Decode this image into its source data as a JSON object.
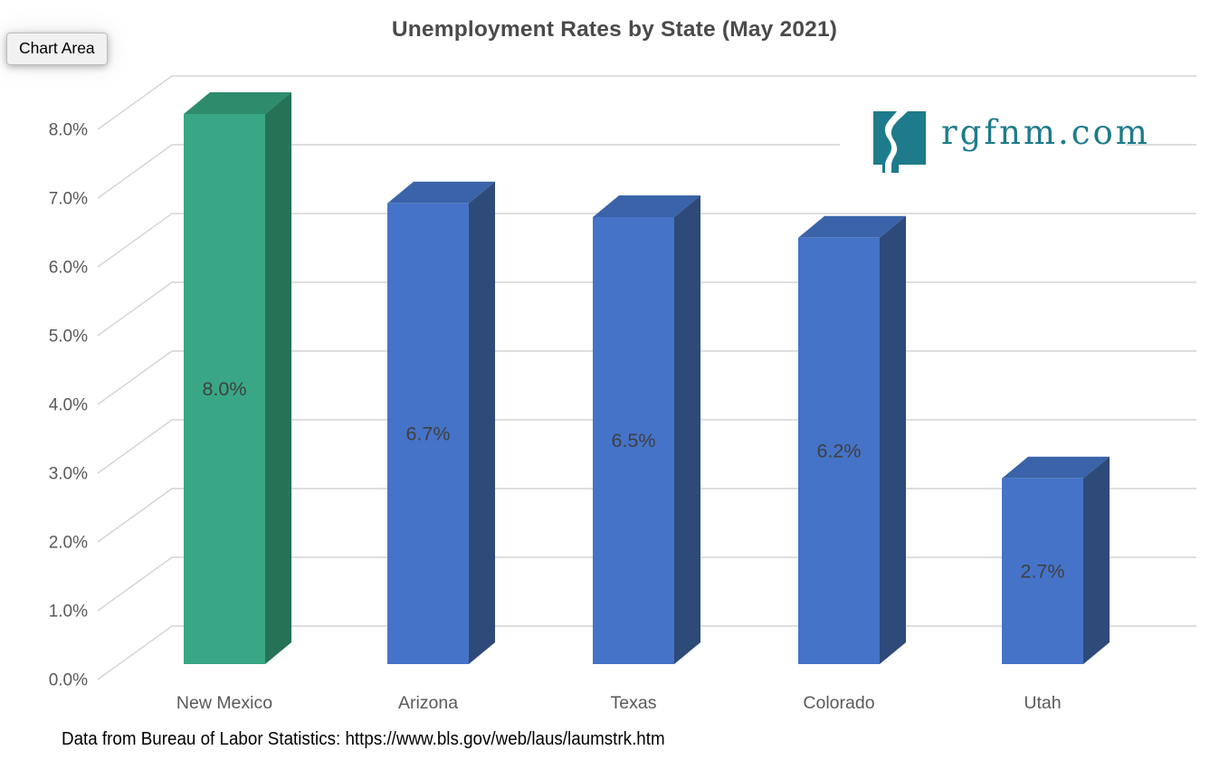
{
  "window": {
    "tooltip": "Chart Area"
  },
  "title": "Unemployment Rates by State (May 2021)",
  "watermark": {
    "text": "rgfnm.com",
    "color": "#1e7b8b"
  },
  "footer": {
    "text": "Data from Bureau of Labor Statistics: https://www.bls.gov/web/laus/laumstrk.htm"
  },
  "chart_data": {
    "type": "bar",
    "projection": "3d",
    "title": "Unemployment Rates by State (May 2021)",
    "categories": [
      "New Mexico",
      "Arizona",
      "Texas",
      "Colorado",
      "Utah"
    ],
    "values": [
      8.0,
      6.7,
      6.5,
      6.2,
      2.7
    ],
    "data_labels": [
      "8.0%",
      "6.7%",
      "6.5%",
      "6.2%",
      "2.7%"
    ],
    "highlight_index": 0,
    "y_axis": {
      "min": 0,
      "max": 8,
      "step": 1,
      "ticks": [
        "0.0%",
        "1.0%",
        "2.0%",
        "3.0%",
        "4.0%",
        "5.0%",
        "6.0%",
        "7.0%",
        "8.0%"
      ]
    },
    "grid": true,
    "legend": false,
    "colors": {
      "highlight_front": "#39a785",
      "highlight_top": "#2e8c6c",
      "highlight_side": "#257257",
      "default_front": "#4573c8",
      "default_top": "#3a63a9",
      "default_side": "#2e4a78",
      "gridline": "#d4d4d4",
      "axis_text": "#595959",
      "data_label_text": "#3f3f3f"
    }
  }
}
